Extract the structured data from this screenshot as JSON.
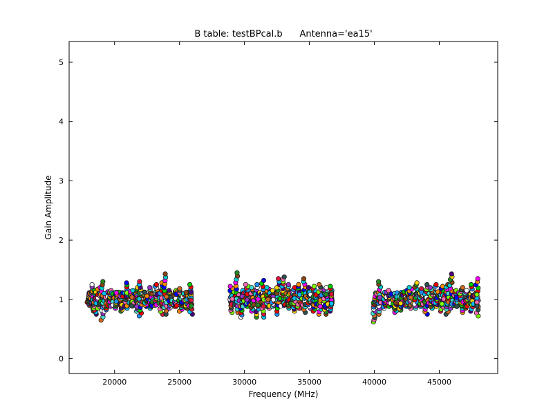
{
  "chart_data": {
    "type": "scatter",
    "title": "B table: testBPcal.b      Antenna='ea15'",
    "xlabel": "Frequency (MHz)",
    "ylabel": "Gain Amplitude",
    "xlim": [
      16500,
      49500
    ],
    "ylim": [
      -0.25,
      5.35
    ],
    "xticks": [
      20000,
      25000,
      30000,
      35000,
      40000,
      45000
    ],
    "xtick_labels": [
      "20000",
      "25000",
      "30000",
      "35000",
      "40000",
      "45000"
    ],
    "yticks": [
      0,
      1,
      2,
      3,
      4,
      5
    ],
    "ytick_labels": [
      "0",
      "1",
      "2",
      "3",
      "4",
      "5"
    ],
    "grid": false,
    "legend": "none",
    "series": [
      {
        "values": [
          {
            "x": 18000,
            "y": 0.95
          },
          {
            "x": 18000,
            "y": 1.05
          },
          {
            "x": 18100,
            "y": 0.9
          },
          {
            "x": 18100,
            "y": 1.1
          },
          {
            "x": 18300,
            "y": 0.8
          },
          {
            "x": 18300,
            "y": 1.25
          },
          {
            "x": 18500,
            "y": 0.75
          },
          {
            "x": 18500,
            "y": 1.15
          },
          {
            "x": 18800,
            "y": 0.85
          },
          {
            "x": 18800,
            "y": 1.2
          },
          {
            "x": 19000,
            "y": 0.65
          },
          {
            "x": 19000,
            "y": 1.3
          },
          {
            "x": 19300,
            "y": 0.8
          },
          {
            "x": 19300,
            "y": 1.1
          },
          {
            "x": 19700,
            "y": 0.9
          },
          {
            "x": 19700,
            "y": 1.15
          },
          {
            "x": 20100,
            "y": 0.85
          },
          {
            "x": 20100,
            "y": 1.12
          },
          {
            "x": 20500,
            "y": 0.8
          },
          {
            "x": 20500,
            "y": 1.1
          },
          {
            "x": 20900,
            "y": 0.85
          },
          {
            "x": 20900,
            "y": 1.28
          },
          {
            "x": 21300,
            "y": 0.9
          },
          {
            "x": 21300,
            "y": 1.15
          },
          {
            "x": 21700,
            "y": 0.8
          },
          {
            "x": 21700,
            "y": 1.2
          },
          {
            "x": 22000,
            "y": 0.72
          },
          {
            "x": 22000,
            "y": 1.3
          },
          {
            "x": 22400,
            "y": 0.88
          },
          {
            "x": 22400,
            "y": 1.12
          },
          {
            "x": 22800,
            "y": 0.85
          },
          {
            "x": 22800,
            "y": 1.2
          },
          {
            "x": 23200,
            "y": 0.9
          },
          {
            "x": 23200,
            "y": 1.25
          },
          {
            "x": 23600,
            "y": 0.75
          },
          {
            "x": 23600,
            "y": 1.28
          },
          {
            "x": 23900,
            "y": 0.75
          },
          {
            "x": 23900,
            "y": 1.43
          },
          {
            "x": 24300,
            "y": 0.85
          },
          {
            "x": 24300,
            "y": 1.15
          },
          {
            "x": 24700,
            "y": 0.88
          },
          {
            "x": 24700,
            "y": 1.15
          },
          {
            "x": 25100,
            "y": 0.8
          },
          {
            "x": 25100,
            "y": 1.18
          },
          {
            "x": 25500,
            "y": 0.85
          },
          {
            "x": 25500,
            "y": 1.12
          },
          {
            "x": 25900,
            "y": 0.75
          },
          {
            "x": 25900,
            "y": 1.25
          }
        ]
      },
      {
        "values": [
          {
            "x": 29000,
            "y": 0.78
          },
          {
            "x": 29000,
            "y": 1.22
          },
          {
            "x": 29400,
            "y": 0.78
          },
          {
            "x": 29400,
            "y": 1.45
          },
          {
            "x": 29800,
            "y": 0.7
          },
          {
            "x": 29800,
            "y": 1.15
          },
          {
            "x": 30200,
            "y": 0.88
          },
          {
            "x": 30200,
            "y": 1.25
          },
          {
            "x": 30600,
            "y": 0.8
          },
          {
            "x": 30600,
            "y": 1.2
          },
          {
            "x": 31000,
            "y": 0.7
          },
          {
            "x": 31000,
            "y": 1.25
          },
          {
            "x": 31400,
            "y": 0.7
          },
          {
            "x": 31400,
            "y": 1.32
          },
          {
            "x": 31800,
            "y": 0.85
          },
          {
            "x": 31800,
            "y": 1.2
          },
          {
            "x": 32200,
            "y": 0.88
          },
          {
            "x": 32200,
            "y": 1.15
          },
          {
            "x": 32600,
            "y": 0.75
          },
          {
            "x": 32600,
            "y": 1.35
          },
          {
            "x": 33000,
            "y": 0.9
          },
          {
            "x": 33000,
            "y": 1.38
          },
          {
            "x": 33400,
            "y": 0.85
          },
          {
            "x": 33400,
            "y": 1.25
          },
          {
            "x": 33800,
            "y": 0.8
          },
          {
            "x": 33800,
            "y": 1.2
          },
          {
            "x": 34200,
            "y": 0.85
          },
          {
            "x": 34200,
            "y": 1.25
          },
          {
            "x": 34600,
            "y": 0.78
          },
          {
            "x": 34600,
            "y": 1.35
          },
          {
            "x": 35000,
            "y": 0.85
          },
          {
            "x": 35000,
            "y": 1.2
          },
          {
            "x": 35400,
            "y": 0.8
          },
          {
            "x": 35400,
            "y": 1.22
          },
          {
            "x": 35800,
            "y": 0.75
          },
          {
            "x": 35800,
            "y": 1.25
          },
          {
            "x": 36200,
            "y": 0.75
          },
          {
            "x": 36200,
            "y": 1.2
          },
          {
            "x": 36700,
            "y": 0.8
          },
          {
            "x": 36700,
            "y": 1.22
          }
        ]
      },
      {
        "values": [
          {
            "x": 40000,
            "y": 0.62
          },
          {
            "x": 40000,
            "y": 1.05
          },
          {
            "x": 40400,
            "y": 0.75
          },
          {
            "x": 40400,
            "y": 1.3
          },
          {
            "x": 40800,
            "y": 0.85
          },
          {
            "x": 40800,
            "y": 1.12
          },
          {
            "x": 41200,
            "y": 0.88
          },
          {
            "x": 41200,
            "y": 1.15
          },
          {
            "x": 41600,
            "y": 0.78
          },
          {
            "x": 41600,
            "y": 1.1
          },
          {
            "x": 42000,
            "y": 0.82
          },
          {
            "x": 42000,
            "y": 1.12
          },
          {
            "x": 42400,
            "y": 0.88
          },
          {
            "x": 42400,
            "y": 1.15
          },
          {
            "x": 42800,
            "y": 0.85
          },
          {
            "x": 42800,
            "y": 1.2
          },
          {
            "x": 43200,
            "y": 0.85
          },
          {
            "x": 43200,
            "y": 1.28
          },
          {
            "x": 43600,
            "y": 0.88
          },
          {
            "x": 43600,
            "y": 1.18
          },
          {
            "x": 44000,
            "y": 0.75
          },
          {
            "x": 44000,
            "y": 1.25
          },
          {
            "x": 44400,
            "y": 0.85
          },
          {
            "x": 44400,
            "y": 1.2
          },
          {
            "x": 44800,
            "y": 0.88
          },
          {
            "x": 44800,
            "y": 1.25
          },
          {
            "x": 45200,
            "y": 0.8
          },
          {
            "x": 45200,
            "y": 1.22
          },
          {
            "x": 45600,
            "y": 0.75
          },
          {
            "x": 45600,
            "y": 1.25
          },
          {
            "x": 45900,
            "y": 0.85
          },
          {
            "x": 45900,
            "y": 1.43
          },
          {
            "x": 46300,
            "y": 0.88
          },
          {
            "x": 46300,
            "y": 1.15
          },
          {
            "x": 46700,
            "y": 0.78
          },
          {
            "x": 46700,
            "y": 1.2
          },
          {
            "x": 47100,
            "y": 0.85
          },
          {
            "x": 47100,
            "y": 1.15
          },
          {
            "x": 47500,
            "y": 0.8
          },
          {
            "x": 47500,
            "y": 1.25
          },
          {
            "x": 47900,
            "y": 0.72
          },
          {
            "x": 47900,
            "y": 1.35
          }
        ]
      }
    ],
    "marker_colors": [
      "#ff0000",
      "#00cc00",
      "#0000ff",
      "#ff8c00",
      "#ff00ff",
      "#00ced1",
      "#8b4513",
      "#228b22",
      "#ffd700",
      "#4b0082",
      "#00bfff",
      "#dc143c",
      "#7fff00",
      "#ff69b4",
      "#2f4f4f",
      "#d2691e",
      "#40e0d0",
      "#9932cc",
      "#ffffff",
      "#1e90ff"
    ]
  }
}
